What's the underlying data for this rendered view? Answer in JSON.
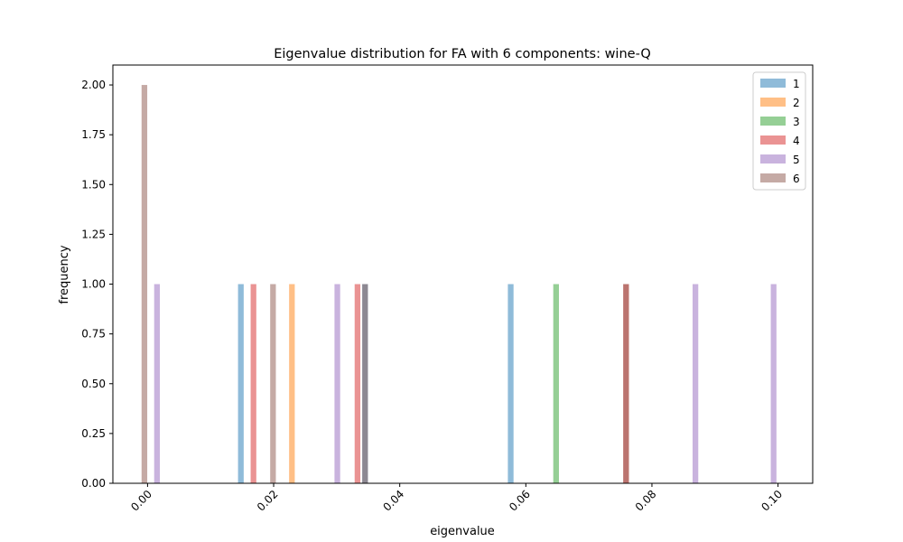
{
  "chart_data": {
    "type": "bar",
    "title": "Eigenvalue distribution for FA with 6 components: wine-Q",
    "xlabel": "eigenvalue",
    "ylabel": "frequency",
    "xlim": [
      -0.0055,
      0.1055
    ],
    "ylim": [
      0,
      2.1
    ],
    "xticks": [
      0.0,
      0.02,
      0.04,
      0.06,
      0.08,
      0.1
    ],
    "xtick_labels": [
      "0.00",
      "0.02",
      "0.04",
      "0.06",
      "0.08",
      "0.10"
    ],
    "yticks": [
      0.0,
      0.25,
      0.5,
      0.75,
      1.0,
      1.25,
      1.5,
      1.75,
      2.0
    ],
    "ytick_labels": [
      "0.00",
      "0.25",
      "0.50",
      "0.75",
      "1.00",
      "1.25",
      "1.50",
      "1.75",
      "2.00"
    ],
    "bar_width": 0.0009,
    "opacity": 0.5,
    "grid": false,
    "legend_position": "top-right",
    "series": [
      {
        "name": "1",
        "color": "#1f77b4",
        "bars": [
          {
            "x": 0.0148,
            "y": 1
          },
          {
            "x": 0.0345,
            "y": 1
          },
          {
            "x": 0.0576,
            "y": 1
          }
        ]
      },
      {
        "name": "2",
        "color": "#ff7f0e",
        "bars": [
          {
            "x": 0.0229,
            "y": 1
          }
        ]
      },
      {
        "name": "3",
        "color": "#2ca02c",
        "bars": [
          {
            "x": 0.0648,
            "y": 1
          }
        ]
      },
      {
        "name": "4",
        "color": "#d62728",
        "bars": [
          {
            "x": 0.0168,
            "y": 1
          },
          {
            "x": 0.0333,
            "y": 1
          },
          {
            "x": 0.0759,
            "y": 1
          }
        ]
      },
      {
        "name": "5",
        "color": "#9467bd",
        "bars": [
          {
            "x": 0.0015,
            "y": 1
          },
          {
            "x": 0.0301,
            "y": 1
          },
          {
            "x": 0.0869,
            "y": 1
          },
          {
            "x": 0.0993,
            "y": 1
          }
        ]
      },
      {
        "name": "6",
        "color": "#8c564b",
        "bars": [
          {
            "x": -0.0005,
            "y": 2
          },
          {
            "x": 0.0199,
            "y": 1
          },
          {
            "x": 0.0345,
            "y": 1
          },
          {
            "x": 0.0759,
            "y": 1
          }
        ]
      }
    ]
  }
}
